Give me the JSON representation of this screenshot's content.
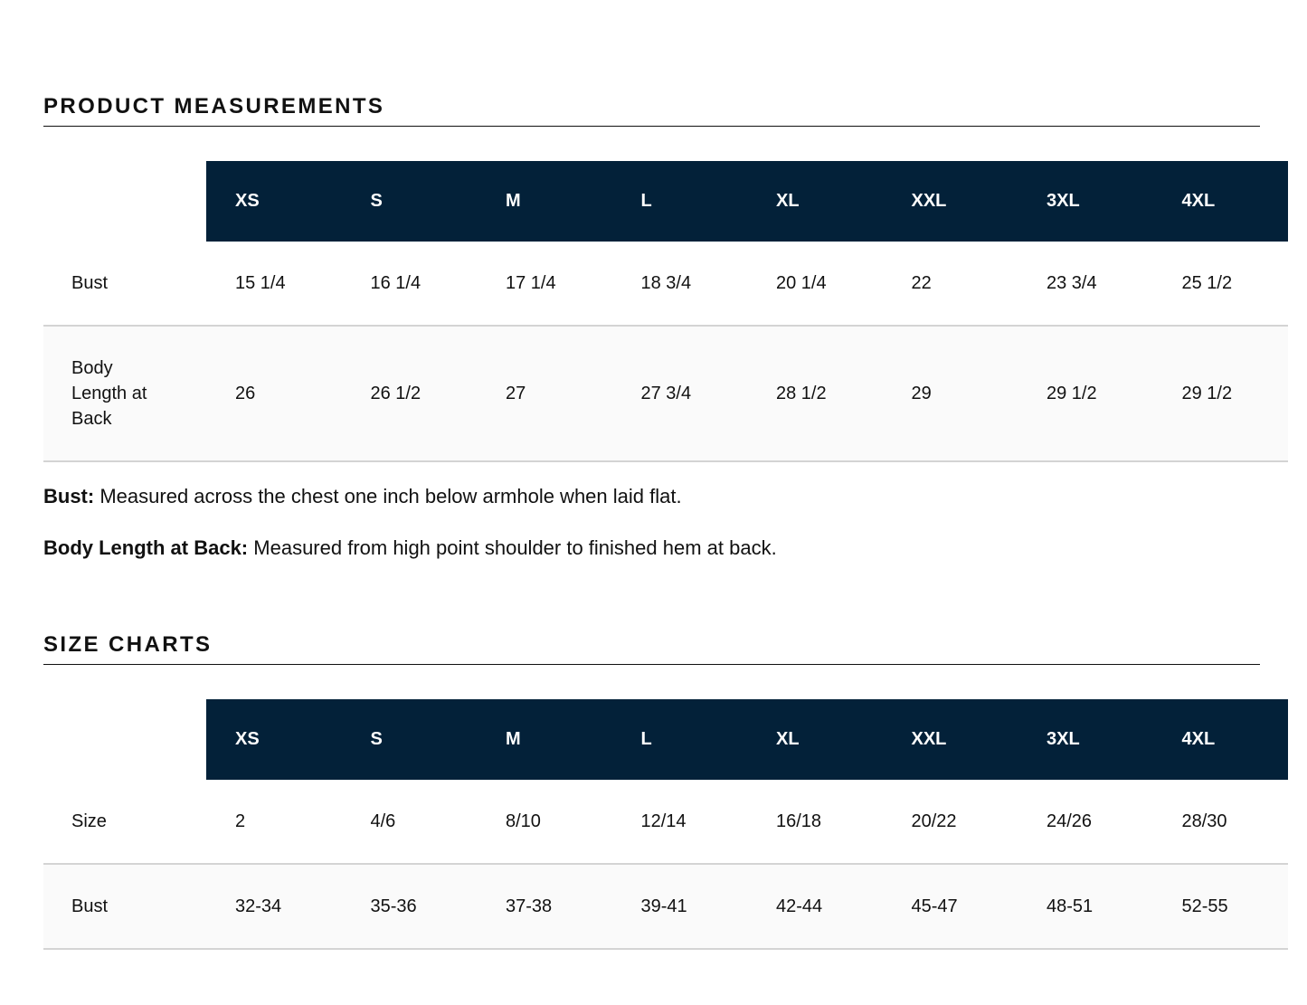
{
  "sections": [
    {
      "title": "PRODUCT MEASUREMENTS",
      "table": {
        "headers": [
          "XS",
          "S",
          "M",
          "L",
          "XL",
          "XXL",
          "3XL",
          "4XL"
        ],
        "rows": [
          [
            "Bust",
            "15 1/4",
            "16 1/4",
            "17 1/4",
            "18 3/4",
            "20 1/4",
            "22",
            "23 3/4",
            "25 1/2"
          ],
          [
            "Body Length at Back",
            "26",
            "26 1/2",
            "27",
            "27 3/4",
            "28 1/2",
            "29",
            "29 1/2",
            "29 1/2"
          ]
        ]
      },
      "notes": [
        {
          "term": "Bust:",
          "text": "Measured across the chest one inch below armhole when laid flat."
        },
        {
          "term": "Body Length at Back:",
          "text": "Measured from high point shoulder to finished hem at back."
        }
      ]
    },
    {
      "title": "SIZE CHARTS",
      "table": {
        "headers": [
          "XS",
          "S",
          "M",
          "L",
          "XL",
          "XXL",
          "3XL",
          "4XL"
        ],
        "rows": [
          [
            "Size",
            "2",
            "4/6",
            "8/10",
            "12/14",
            "16/18",
            "20/22",
            "24/26",
            "28/30"
          ],
          [
            "Bust",
            "32-34",
            "35-36",
            "37-38",
            "39-41",
            "42-44",
            "45-47",
            "48-51",
            "52-55"
          ]
        ]
      }
    }
  ]
}
